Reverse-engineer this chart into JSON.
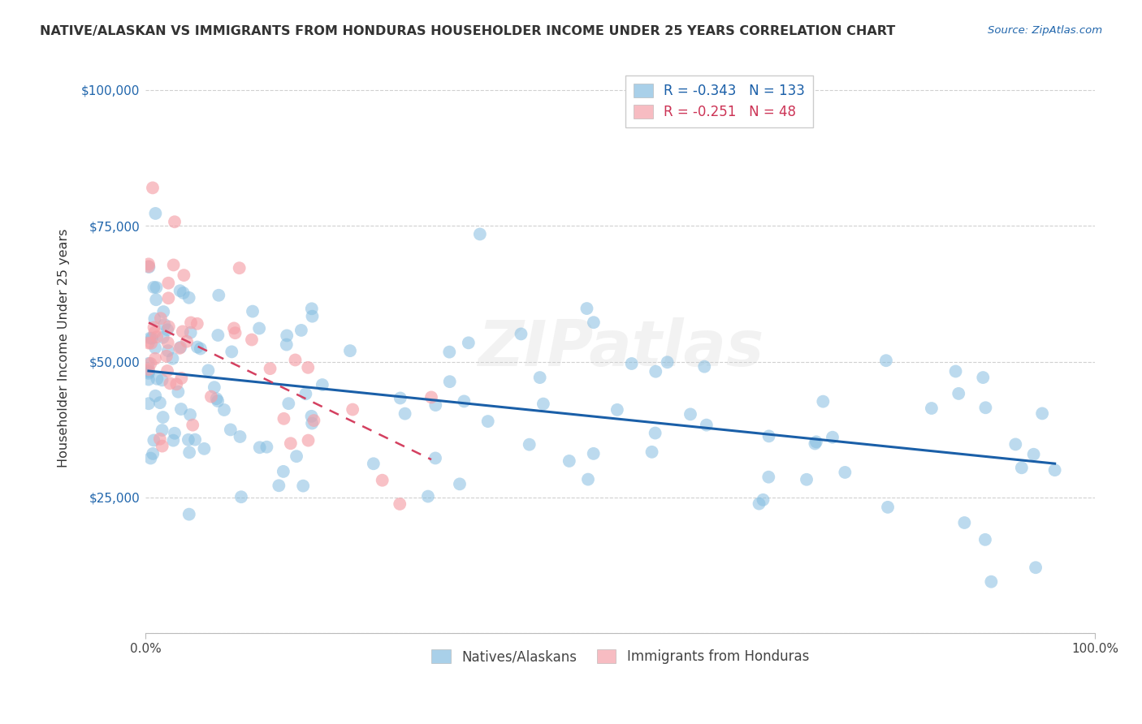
{
  "title": "NATIVE/ALASKAN VS IMMIGRANTS FROM HONDURAS HOUSEHOLDER INCOME UNDER 25 YEARS CORRELATION CHART",
  "source": "Source: ZipAtlas.com",
  "ylabel": "Householder Income Under 25 years",
  "legend_label_1": "Natives/Alaskans",
  "legend_label_2": "Immigrants from Honduras",
  "r1": -0.343,
  "n1": 133,
  "r2": -0.251,
  "n2": 48,
  "color_blue": "#85bde0",
  "color_pink": "#f5a0a8",
  "line_blue": "#1a5fa8",
  "line_pink": "#d44060",
  "background_color": "#ffffff",
  "grid_color": "#d0d0d0",
  "xlim": [
    0,
    100
  ],
  "ylim": [
    0,
    100000
  ],
  "yticks": [
    0,
    25000,
    50000,
    75000,
    100000
  ],
  "ytick_labels": [
    "",
    "$25,000",
    "$50,000",
    "$75,000",
    "$100,000"
  ],
  "watermark": "ZIPatlas",
  "seed": 42
}
